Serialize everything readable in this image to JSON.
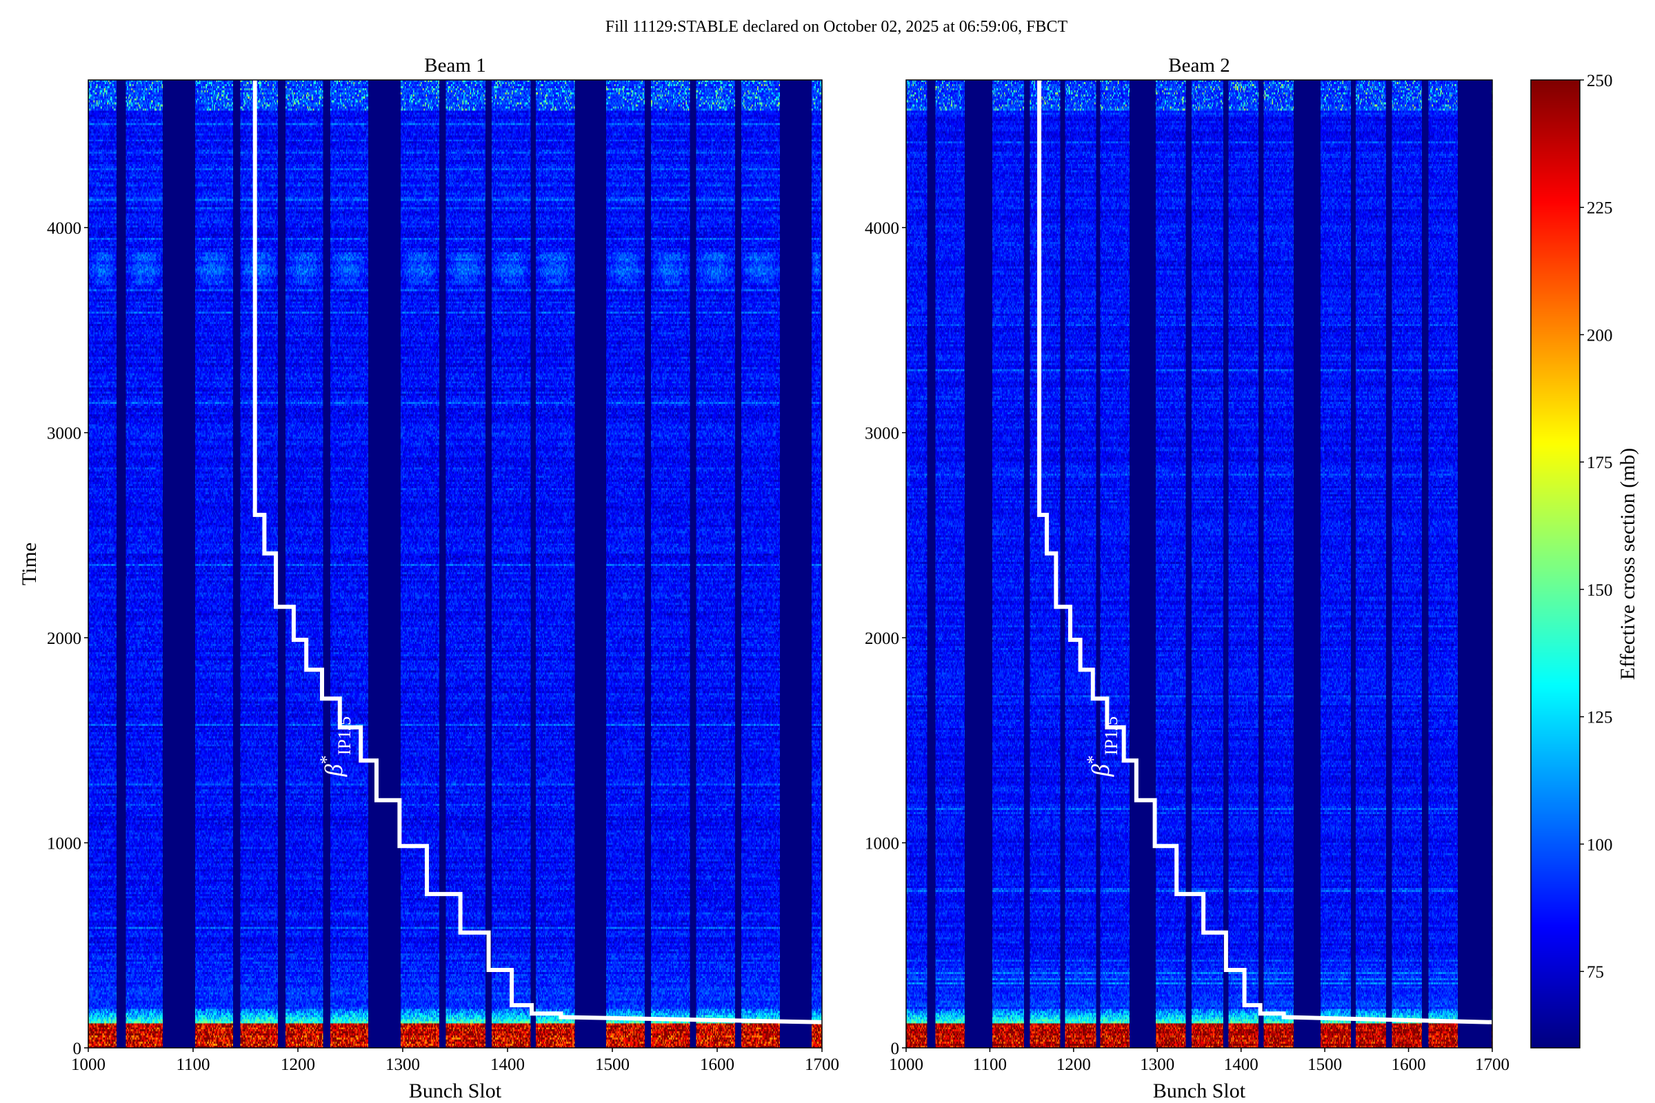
{
  "chart_data": {
    "type": "heatmap",
    "title": "Fill 11129:STABLE declared on October 02, 2025 at 06:59:06, FBCT",
    "colorbar": {
      "label": "Effective cross section (mb)",
      "range": [
        60,
        250
      ],
      "ticks": [
        75,
        100,
        125,
        150,
        175,
        200,
        225,
        250
      ],
      "colormap": "jet"
    },
    "panels": [
      {
        "title": "Beam 1",
        "xlabel": "Bunch Slot",
        "ylabel": "Time",
        "xlim": [
          1000,
          1700
        ],
        "ylim": [
          0,
          4720
        ],
        "xticks": [
          1000,
          1100,
          1200,
          1300,
          1400,
          1500,
          1600,
          1700
        ],
        "yticks": [
          0,
          1000,
          2000,
          3000,
          4000
        ],
        "filled_bunch_trains": [
          [
            1000,
            1027
          ],
          [
            1036,
            1071
          ],
          [
            1102,
            1138
          ],
          [
            1145,
            1181
          ],
          [
            1188,
            1224
          ],
          [
            1231,
            1267
          ],
          [
            1298,
            1335
          ],
          [
            1341,
            1379
          ],
          [
            1385,
            1422
          ],
          [
            1427,
            1464
          ],
          [
            1494,
            1531
          ],
          [
            1537,
            1574
          ],
          [
            1580,
            1617
          ],
          [
            1623,
            1660
          ],
          [
            1690,
            1700
          ]
        ],
        "typical_values": {
          "empty_slots": 60,
          "stable_body": 85,
          "start_of_fill": 230,
          "transition": 140,
          "end_streaks": 160
        },
        "annotation": {
          "symbol": "β",
          "superscript": "*",
          "subscript": "IP1/5"
        },
        "beta_star_line": [
          [
            1159,
            4720
          ],
          [
            1159,
            2599
          ],
          [
            1168,
            2599
          ],
          [
            1168,
            2411
          ],
          [
            1179,
            2411
          ],
          [
            1179,
            2151
          ],
          [
            1196,
            2151
          ],
          [
            1196,
            1990
          ],
          [
            1208,
            1990
          ],
          [
            1208,
            1844
          ],
          [
            1223,
            1844
          ],
          [
            1223,
            1703
          ],
          [
            1240,
            1703
          ],
          [
            1240,
            1563
          ],
          [
            1260,
            1563
          ],
          [
            1260,
            1401
          ],
          [
            1275,
            1401
          ],
          [
            1275,
            1208
          ],
          [
            1297,
            1208
          ],
          [
            1297,
            984
          ],
          [
            1323,
            984
          ],
          [
            1323,
            750
          ],
          [
            1355,
            750
          ],
          [
            1355,
            562
          ],
          [
            1382,
            562
          ],
          [
            1382,
            380
          ],
          [
            1404,
            380
          ],
          [
            1404,
            208
          ],
          [
            1423,
            208
          ],
          [
            1423,
            167
          ],
          [
            1451,
            167
          ],
          [
            1451,
            150
          ],
          [
            1700,
            125
          ]
        ]
      },
      {
        "title": "Beam 2",
        "xlabel": "Bunch Slot",
        "ylabel": "",
        "xlim": [
          1000,
          1700
        ],
        "ylim": [
          0,
          4720
        ],
        "xticks": [
          1000,
          1100,
          1200,
          1300,
          1400,
          1500,
          1600,
          1700
        ],
        "yticks": [
          0,
          1000,
          2000,
          3000,
          4000
        ],
        "filled_bunch_trains": [
          [
            1000,
            1025
          ],
          [
            1035,
            1070
          ],
          [
            1103,
            1141
          ],
          [
            1148,
            1184
          ],
          [
            1190,
            1227
          ],
          [
            1232,
            1267
          ],
          [
            1298,
            1334
          ],
          [
            1341,
            1379
          ],
          [
            1385,
            1421
          ],
          [
            1427,
            1463
          ],
          [
            1495,
            1531
          ],
          [
            1537,
            1573
          ],
          [
            1580,
            1616
          ],
          [
            1624,
            1659
          ],
          [
            1699,
            1700
          ]
        ],
        "typical_values": {
          "empty_slots": 60,
          "stable_body": 85,
          "start_of_fill": 235,
          "transition": 140,
          "end_streaks": 165
        },
        "annotation": {
          "symbol": "β",
          "superscript": "*",
          "subscript": "IP1/5"
        },
        "beta_star_line": [
          [
            1159,
            4720
          ],
          [
            1159,
            2599
          ],
          [
            1168,
            2599
          ],
          [
            1168,
            2411
          ],
          [
            1179,
            2411
          ],
          [
            1179,
            2151
          ],
          [
            1196,
            2151
          ],
          [
            1196,
            1990
          ],
          [
            1208,
            1990
          ],
          [
            1208,
            1844
          ],
          [
            1223,
            1844
          ],
          [
            1223,
            1703
          ],
          [
            1240,
            1703
          ],
          [
            1240,
            1563
          ],
          [
            1260,
            1563
          ],
          [
            1260,
            1401
          ],
          [
            1275,
            1401
          ],
          [
            1275,
            1208
          ],
          [
            1297,
            1208
          ],
          [
            1297,
            984
          ],
          [
            1323,
            984
          ],
          [
            1323,
            750
          ],
          [
            1355,
            750
          ],
          [
            1355,
            562
          ],
          [
            1382,
            562
          ],
          [
            1382,
            380
          ],
          [
            1404,
            380
          ],
          [
            1404,
            208
          ],
          [
            1423,
            208
          ],
          [
            1423,
            167
          ],
          [
            1451,
            167
          ],
          [
            1451,
            150
          ],
          [
            1700,
            125
          ]
        ]
      }
    ]
  }
}
